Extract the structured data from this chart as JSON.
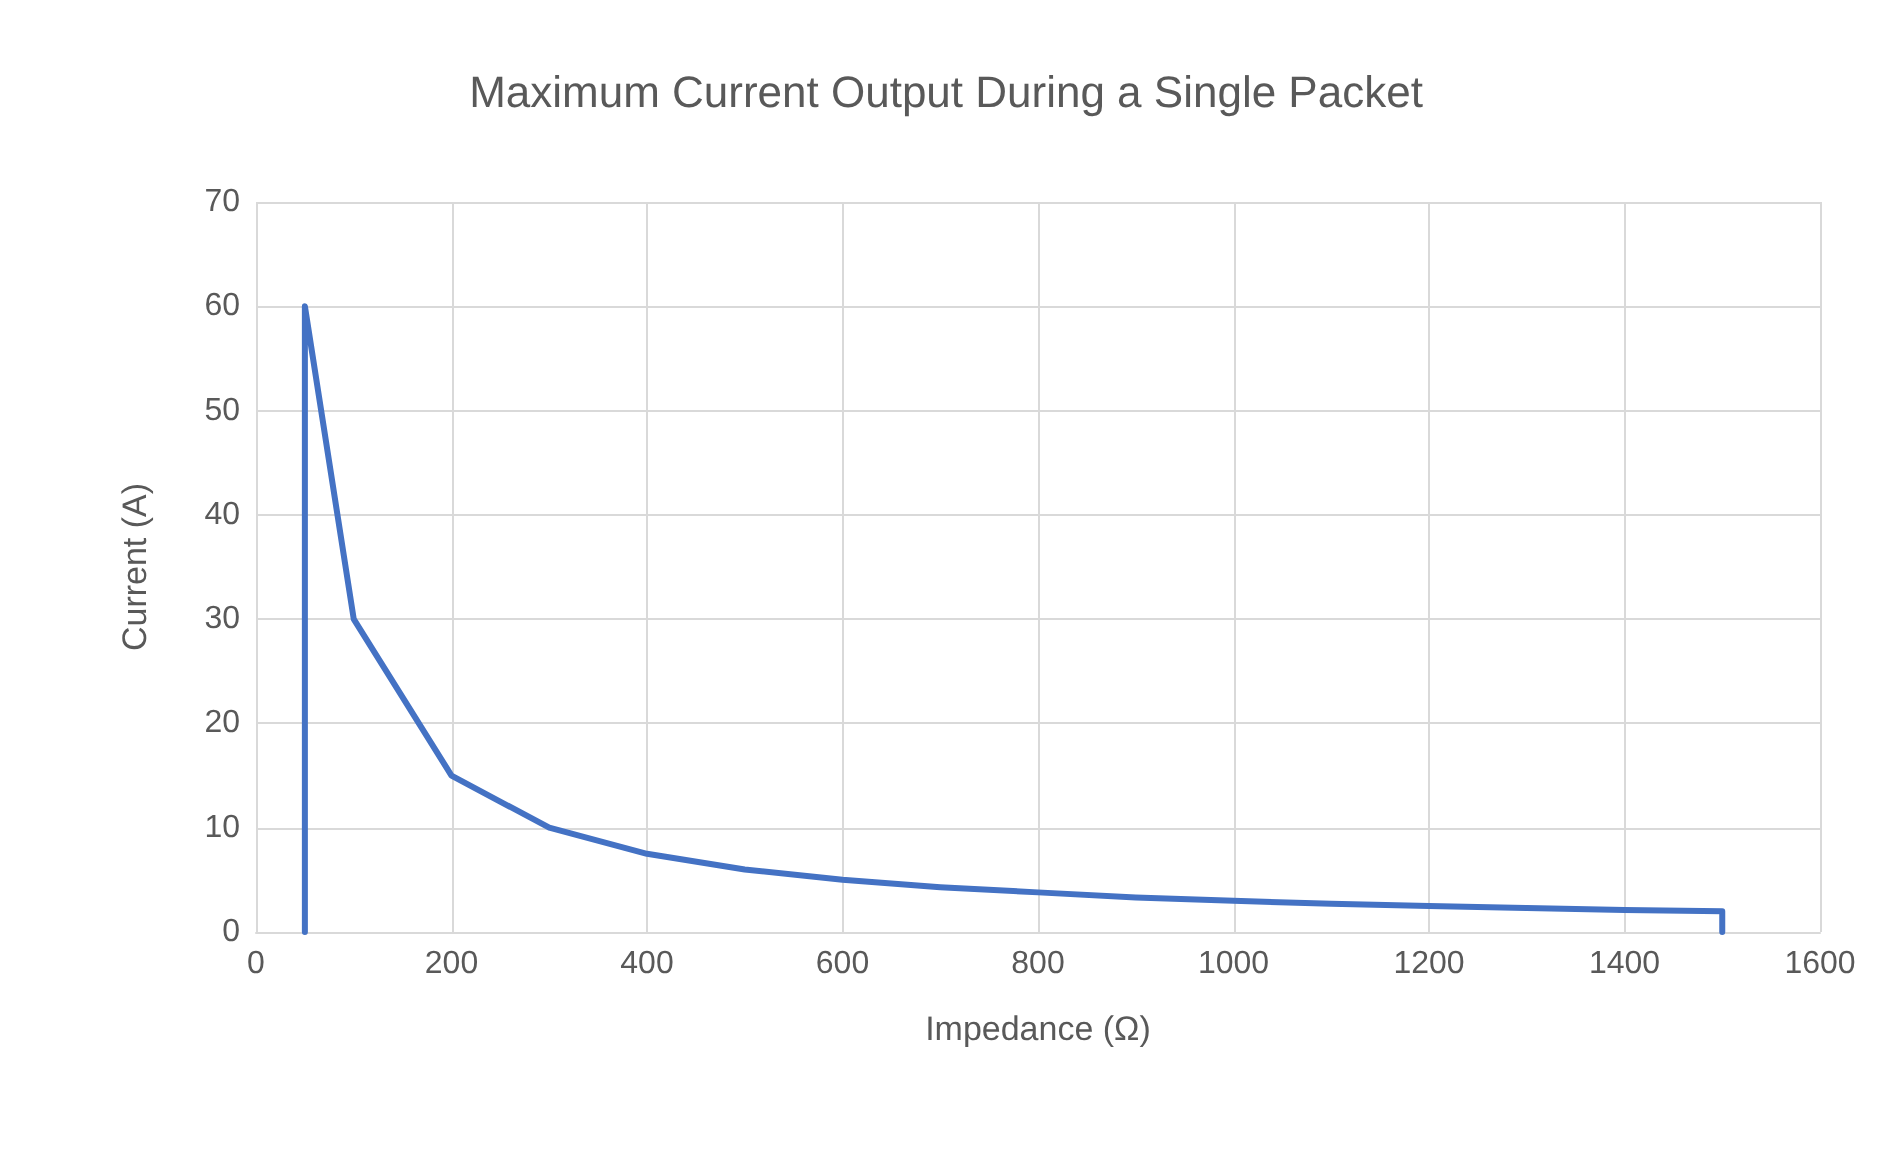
{
  "chart_data": {
    "type": "line",
    "title": "Maximum Current Output During a Single Packet",
    "xlabel": "Impedance (Ω)",
    "ylabel": "Current (A)",
    "x": [
      50,
      50,
      100,
      200,
      300,
      400,
      500,
      600,
      700,
      800,
      900,
      1000,
      1100,
      1200,
      1300,
      1400,
      1500,
      1500
    ],
    "series": [
      {
        "color": "#4472c4",
        "values": [
          0,
          60,
          30,
          15,
          10,
          7.5,
          6,
          5,
          4.3,
          3.8,
          3.3,
          3,
          2.7,
          2.5,
          2.3,
          2.1,
          2,
          0
        ]
      }
    ],
    "xlim": [
      0,
      1600
    ],
    "xticks": [
      0,
      200,
      400,
      600,
      800,
      1000,
      1200,
      1400,
      1600
    ],
    "ylim": [
      0,
      70
    ],
    "yticks": [
      0,
      10,
      20,
      30,
      40,
      50,
      60,
      70
    ],
    "grid": true,
    "marker": "none",
    "line_style": "solid"
  }
}
